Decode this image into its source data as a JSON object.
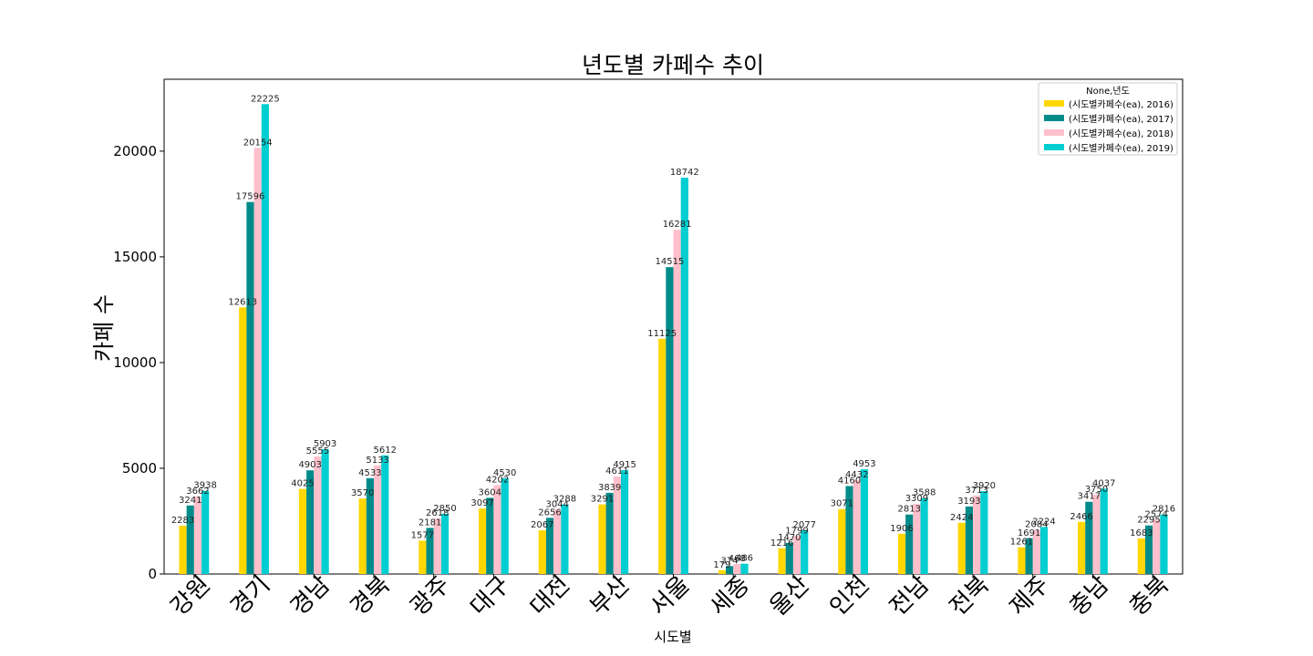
{
  "chart_data": {
    "type": "bar",
    "title": "년도별 카페수 추이",
    "xlabel": "시도별",
    "ylabel": "카페 수",
    "ylim": [
      0,
      23400
    ],
    "yticks": [
      0,
      5000,
      10000,
      15000,
      20000
    ],
    "grid": false,
    "legend_position": "top-right",
    "legend_title": "None,년도",
    "categories": [
      "강원",
      "경기",
      "경남",
      "경북",
      "광주",
      "대구",
      "대전",
      "부산",
      "서울",
      "세종",
      "울산",
      "인천",
      "전남",
      "전북",
      "제주",
      "충남",
      "충북"
    ],
    "series": [
      {
        "name": "(시도별카페수(ea), 2016)",
        "color": "#FFD700",
        "values": [
          2283,
          12613,
          4025,
          3570,
          1577,
          3097,
          2067,
          3291,
          11125,
          179,
          1216,
          3071,
          1906,
          2424,
          1261,
          2466,
          1683
        ]
      },
      {
        "name": "(시도별카페수(ea), 2017)",
        "color": "#008B8B",
        "values": [
          3241,
          17596,
          4903,
          4533,
          2181,
          3604,
          2656,
          3839,
          14515,
          374,
          1470,
          4160,
          2813,
          3193,
          1691,
          3417,
          2295
        ]
      },
      {
        "name": "(시도별카페수(ea), 2018)",
        "color": "#FFC0CB",
        "values": [
          3662,
          20154,
          5555,
          5133,
          2618,
          4202,
          3044,
          4611,
          16281,
          468,
          1799,
          4432,
          3309,
          3713,
          2084,
          3750,
          2574
        ]
      },
      {
        "name": "(시도별카페수(ea), 2019)",
        "color": "#00CED1",
        "values": [
          3938,
          22225,
          5903,
          5612,
          2850,
          4530,
          3288,
          4915,
          18742,
          486,
          2077,
          4953,
          3588,
          3920,
          2224,
          4037,
          2816
        ]
      }
    ]
  }
}
